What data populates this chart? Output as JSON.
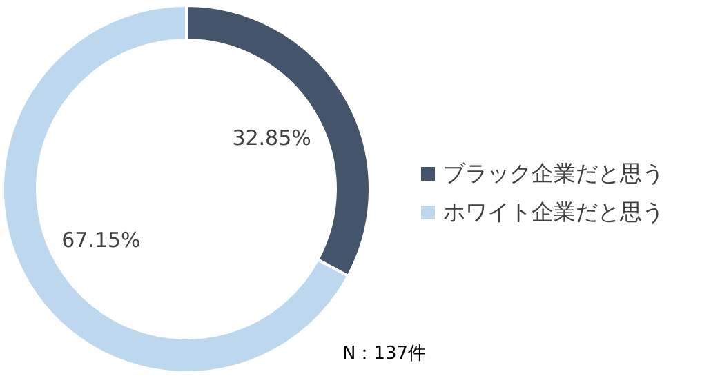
{
  "chart_data": {
    "type": "donut",
    "categories": [
      "ブラック企業だと思う",
      "ホワイト企業だと思う"
    ],
    "values": [
      32.85,
      67.15
    ],
    "value_labels": [
      "32.85%",
      "67.15%"
    ],
    "colors": [
      "#44546a",
      "#bdd7ee"
    ],
    "legend": "right",
    "annotations": [
      "N：137件"
    ]
  }
}
